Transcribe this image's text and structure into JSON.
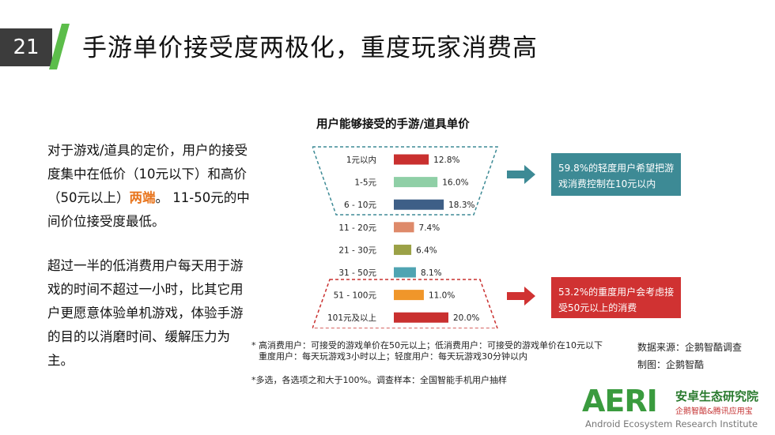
{
  "header": {
    "slide_number": "21",
    "title": "手游单价接受度两极化，重度玩家消费高"
  },
  "body": {
    "p1_before": "对于游戏/道具的定价，用户的接受度集中在低价（10元以下）和高价（50元以上）",
    "p1_highlight": "两端",
    "p1_after": "。 11-50元的中间价位接受度最低。",
    "p2": "超过一半的低消费用户每天用于游戏的时间不超过一小时，比其它用户更愿意体验单机游戏，体验手游的目的以消磨时间、缓解压力为主。"
  },
  "chart_data": {
    "type": "bar",
    "orientation": "horizontal",
    "title": "用户能够接受的手游/道具单价",
    "categories": [
      "1元以内",
      "1-5元",
      "6 - 10元",
      "11 - 20元",
      "21 - 30元",
      "31 - 50元",
      "51 - 100元",
      "101元及以上"
    ],
    "values": [
      12.8,
      16.0,
      18.3,
      7.4,
      6.4,
      8.1,
      11.0,
      20.0
    ],
    "value_labels": [
      "12.8%",
      "16.0%",
      "18.3%",
      "7.4%",
      "6.4%",
      "8.1%",
      "11.0%",
      "20.0%"
    ],
    "colors": [
      "#c9302f",
      "#8fcfa6",
      "#3e5f87",
      "#de8a6a",
      "#9ba146",
      "#4fa4b2",
      "#f0962a",
      "#c9302f"
    ]
  },
  "callouts": {
    "top": "59.8%的轻度用户希望把游戏消费控制在10元以内",
    "bottom": "53.2%的重度用户会考虑接受50元以上的消费"
  },
  "footnotes": {
    "line1": "* 高消费用户：可接受的游戏单价在50元以上；低消费用户：可接受的游戏单价在10元以下",
    "line2": "重度用户：每天玩游戏3小时以上；轻度用户：每天玩游戏30分钟以内",
    "line3": "*多选，各选项之和大于100%。调查样本：全国智能手机用户抽样"
  },
  "source": {
    "data_source": "数据来源：企鹅智酷调查",
    "made_by": "制图：企鹅智酷"
  },
  "logo": {
    "wordmark": "AERI",
    "cn_name": "安卓生态研究院",
    "cn_sub": "企鹅智酷&腾讯应用宝",
    "en_name": "Android Ecosystem Research Institute"
  },
  "colors": {
    "arrow_top": "#3d8a95",
    "arrow_bottom": "#d03232",
    "slash": "#5cbd4a"
  }
}
